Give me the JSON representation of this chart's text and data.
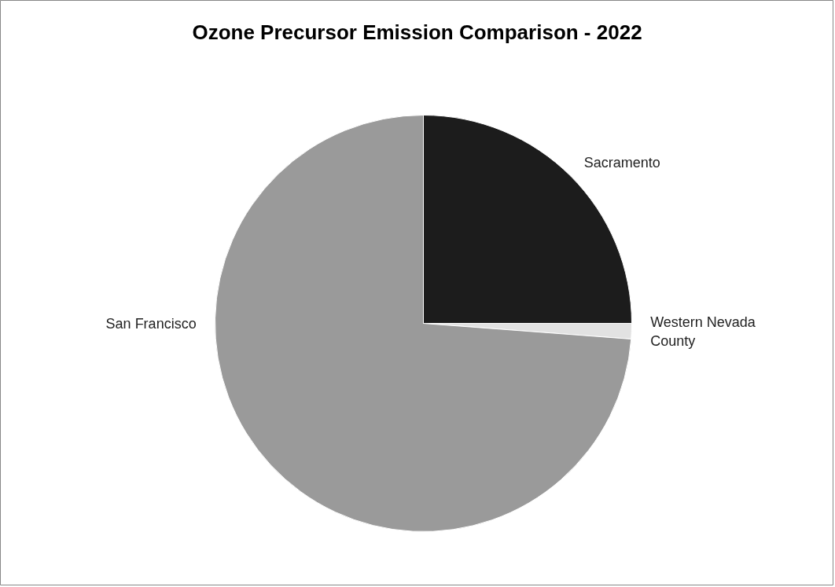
{
  "chart_data": {
    "type": "pie",
    "title": "Ozone Precursor Emission Comparison - 2022",
    "categories": [
      "Sacramento",
      "Western Nevada County",
      "San Francisco"
    ],
    "values": [
      25,
      1.2,
      73.8
    ],
    "colors": [
      "#1c1c1c",
      "#e2e2e2",
      "#9a9a9a"
    ]
  }
}
